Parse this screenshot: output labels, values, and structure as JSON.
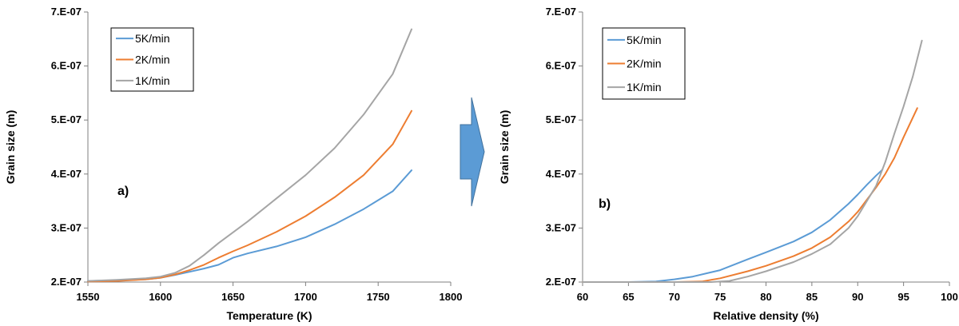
{
  "chart_data": [
    {
      "type": "line",
      "xlabel": "Temperature (K)",
      "ylabel": "Grain size (m)",
      "xlim": [
        1550,
        1800
      ],
      "ylim": [
        2e-07,
        7e-07
      ],
      "xticks": [
        1550,
        1600,
        1650,
        1700,
        1750,
        1800
      ],
      "xtick_labels": [
        "1550",
        "1600",
        "1650",
        "1700",
        "1750",
        "1800"
      ],
      "yticks": [
        2e-07,
        3e-07,
        4e-07,
        5e-07,
        6e-07,
        7e-07
      ],
      "ytick_labels": [
        "2.E-07",
        "3.E-07",
        "4.E-07",
        "5.E-07",
        "6.E-07",
        "7.E-07"
      ],
      "grid": false,
      "legend_position": "top-left",
      "annotation": "a)",
      "series": [
        {
          "name": "5K/min",
          "color": "#5b9bd5",
          "x": [
            1550,
            1570,
            1590,
            1600,
            1610,
            1620,
            1630,
            1640,
            1650,
            1660,
            1680,
            1700,
            1720,
            1740,
            1760,
            1773
          ],
          "y": [
            2.02e-07,
            2.03e-07,
            2.05e-07,
            2.08e-07,
            2.13e-07,
            2.19e-07,
            2.25e-07,
            2.32e-07,
            2.45e-07,
            2.53e-07,
            2.66e-07,
            2.83e-07,
            3.07e-07,
            3.35e-07,
            3.68e-07,
            4.07e-07
          ]
        },
        {
          "name": "2K/min",
          "color": "#ed7d31",
          "x": [
            1550,
            1570,
            1590,
            1600,
            1610,
            1620,
            1630,
            1640,
            1650,
            1660,
            1680,
            1700,
            1720,
            1740,
            1760,
            1773
          ],
          "y": [
            2.01e-07,
            2.02e-07,
            2.05e-07,
            2.08e-07,
            2.14e-07,
            2.22e-07,
            2.32e-07,
            2.45e-07,
            2.57e-07,
            2.68e-07,
            2.93e-07,
            3.22e-07,
            3.57e-07,
            3.98e-07,
            4.55e-07,
            5.17e-07
          ]
        },
        {
          "name": "1K/min",
          "color": "#a5a5a5",
          "x": [
            1550,
            1570,
            1590,
            1600,
            1610,
            1620,
            1630,
            1640,
            1650,
            1660,
            1680,
            1700,
            1720,
            1740,
            1760,
            1773
          ],
          "y": [
            2.02e-07,
            2.04e-07,
            2.07e-07,
            2.1e-07,
            2.17e-07,
            2.3e-07,
            2.5e-07,
            2.72e-07,
            2.92e-07,
            3.12e-07,
            3.55e-07,
            3.98e-07,
            4.48e-07,
            5.1e-07,
            5.85e-07,
            6.68e-07
          ]
        }
      ]
    },
    {
      "type": "line",
      "xlabel": "Relative density (%)",
      "ylabel": "Grain size (m)",
      "xlim": [
        60,
        100
      ],
      "ylim": [
        2e-07,
        7e-07
      ],
      "xticks": [
        60,
        65,
        70,
        75,
        80,
        85,
        90,
        95,
        100
      ],
      "xtick_labels": [
        "60",
        "65",
        "70",
        "75",
        "80",
        "85",
        "90",
        "95",
        "100"
      ],
      "yticks": [
        2e-07,
        3e-07,
        4e-07,
        5e-07,
        6e-07,
        7e-07
      ],
      "ytick_labels": [
        "2.E-07",
        "3.E-07",
        "4.E-07",
        "5.E-07",
        "6.E-07",
        "7.E-07"
      ],
      "grid": false,
      "legend_position": "top-left",
      "annotation": "b)",
      "series": [
        {
          "name": "5K/min",
          "color": "#5b9bd5",
          "x": [
            60,
            65,
            68,
            70,
            72,
            75,
            78,
            80,
            83,
            85,
            87,
            89,
            90,
            91,
            92,
            92.7
          ],
          "y": [
            2e-07,
            2e-07,
            2.01e-07,
            2.05e-07,
            2.1e-07,
            2.22e-07,
            2.42e-07,
            2.55e-07,
            2.75e-07,
            2.92e-07,
            3.15e-07,
            3.45e-07,
            3.62e-07,
            3.8e-07,
            3.97e-07,
            4.08e-07
          ]
        },
        {
          "name": "2K/min",
          "color": "#ed7d31",
          "x": [
            60,
            70,
            73,
            75,
            78,
            80,
            83,
            85,
            87,
            89,
            90,
            92,
            93,
            94,
            95,
            96.5
          ],
          "y": [
            2e-07,
            2e-07,
            2.01e-07,
            2.07e-07,
            2.2e-07,
            2.3e-07,
            2.48e-07,
            2.63e-07,
            2.83e-07,
            3.12e-07,
            3.3e-07,
            3.75e-07,
            4e-07,
            4.3e-07,
            4.68e-07,
            5.22e-07
          ]
        },
        {
          "name": "1K/min",
          "color": "#a5a5a5",
          "x": [
            60,
            74,
            76,
            78,
            80,
            83,
            85,
            87,
            89,
            90,
            92,
            93,
            94,
            95,
            96,
            97
          ],
          "y": [
            2e-07,
            2e-07,
            2.02e-07,
            2.1e-07,
            2.2e-07,
            2.37e-07,
            2.52e-07,
            2.7e-07,
            3e-07,
            3.22e-07,
            3.78e-07,
            4.22e-07,
            4.75e-07,
            5.25e-07,
            5.8e-07,
            6.47e-07
          ]
        }
      ]
    }
  ]
}
